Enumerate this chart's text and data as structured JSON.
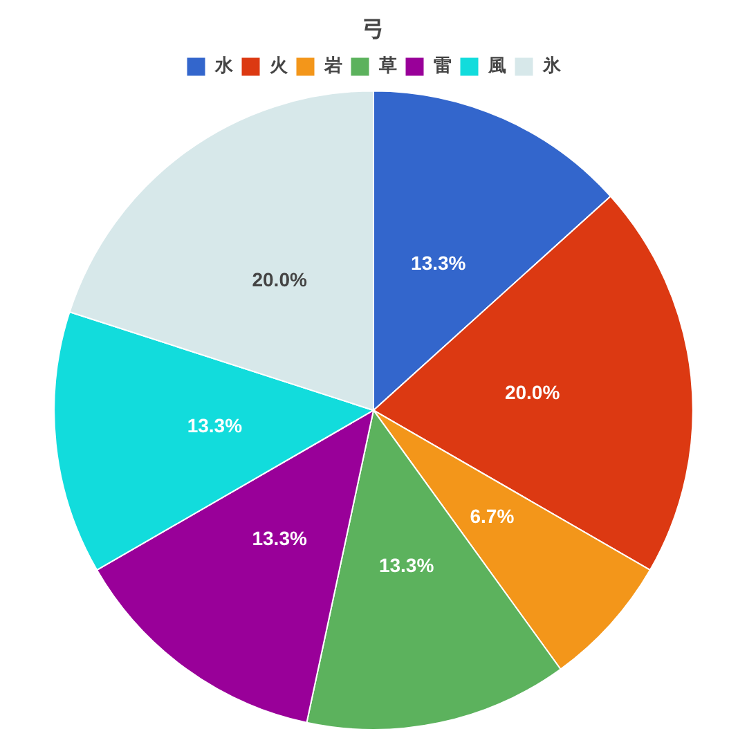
{
  "chart_data": {
    "type": "pie",
    "title": "弓",
    "legend": "top",
    "value_labels": [
      "13.3%",
      "20.0%",
      "6.7%",
      "13.3%",
      "13.3%",
      "13.3%",
      "20.0%"
    ],
    "categories": [
      "水",
      "火",
      "岩",
      "草",
      "雷",
      "風",
      "氷"
    ],
    "values": [
      13.3,
      20.0,
      6.7,
      13.3,
      13.3,
      13.3,
      20.0
    ],
    "colors": [
      "#3366cc",
      "#dc3912",
      "#f3961a",
      "#5cb25d",
      "#990099",
      "#12dcdc",
      "#d7e8ea"
    ]
  }
}
